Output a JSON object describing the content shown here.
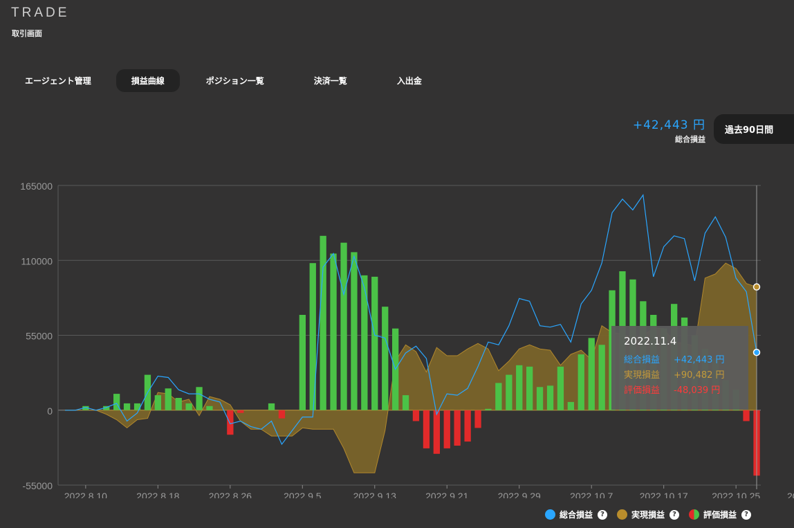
{
  "header": {
    "brand": "TRADE",
    "subtitle": "取引画面"
  },
  "tabs": [
    {
      "label": "エージェント管理",
      "active": false
    },
    {
      "label": "損益曲線",
      "active": true
    },
    {
      "label": "ポジション一覧",
      "active": false
    },
    {
      "label": "決済一覧",
      "active": false
    },
    {
      "label": "入出金",
      "active": false
    }
  ],
  "summary": {
    "value": "+42,443 円",
    "label": "総合損益"
  },
  "period_button": {
    "label": "過去90日間"
  },
  "tooltip": {
    "date": "2022.11.4",
    "rows": [
      {
        "label": "総合損益",
        "value": "+42,443 円",
        "color": "#2aa6ff"
      },
      {
        "label": "実現損益",
        "value": "+90,482 円",
        "color": "#b98d2c"
      },
      {
        "label": "評価損益",
        "value": "-48,039 円",
        "color": "#e22a2a"
      }
    ]
  },
  "legend": [
    {
      "label": "総合損益",
      "color": "#2aa6ff",
      "help": "?"
    },
    {
      "label": "実現損益",
      "color": "#b98d2c",
      "help": "?"
    },
    {
      "label": "評価損益",
      "color": "split",
      "help": "?"
    }
  ],
  "colors": {
    "total": "#2aa6ff",
    "realized": "#b98d2c",
    "realized_fill": "#7a642a",
    "unrealized_pos": "#4bc247",
    "unrealized_neg": "#e22a2a"
  },
  "chart_data": {
    "type": "bar",
    "ylim": [
      -55000,
      165000
    ],
    "yticks": [
      165000,
      110000,
      55000,
      0,
      -55000
    ],
    "xtick_labels": [
      "2022.8.10",
      "2022.8.18",
      "2022.8.26",
      "2022.9.5",
      "2022.9.13",
      "2022.9.21",
      "2022.9.29",
      "2022.10.7",
      "2022.10.17",
      "2022.10.25",
      "2022.11.4"
    ],
    "xtick_index": [
      2,
      9,
      16,
      23,
      30,
      37,
      44,
      51,
      58,
      65,
      72
    ],
    "series": [
      {
        "name": "総合損益",
        "type": "line",
        "values": [
          0,
          0,
          2000,
          0,
          2000,
          5000,
          -8000,
          -2000,
          13000,
          25000,
          24000,
          15000,
          12000,
          12000,
          8000,
          6000,
          -10000,
          -8000,
          -12000,
          -14000,
          -8000,
          -25000,
          -15000,
          -5000,
          -5000,
          105000,
          115000,
          85000,
          113000,
          90000,
          55000,
          53000,
          30000,
          42000,
          47000,
          38000,
          -3000,
          12000,
          11000,
          16000,
          32000,
          50000,
          48000,
          62000,
          82000,
          80000,
          62000,
          61000,
          63000,
          50000,
          78000,
          88000,
          108000,
          145000,
          155000,
          147000,
          158000,
          98000,
          120000,
          128000,
          126000,
          95000,
          130000,
          142000,
          127000,
          97000,
          87000,
          42443
        ]
      },
      {
        "name": "実現損益",
        "type": "area",
        "values": [
          0,
          0,
          0,
          0,
          -3000,
          -7000,
          -13000,
          -7000,
          -6000,
          13000,
          12000,
          6000,
          8000,
          -4000,
          10000,
          8000,
          4000,
          -8000,
          -14000,
          -14000,
          -19000,
          -19000,
          -19000,
          -13000,
          -14000,
          -14000,
          -14000,
          -28000,
          -46000,
          -46000,
          -46000,
          -15000,
          36000,
          48000,
          43000,
          28000,
          46000,
          40000,
          40000,
          45000,
          49000,
          45000,
          29000,
          36000,
          45000,
          48000,
          45000,
          44000,
          33000,
          41000,
          44000,
          37000,
          62000,
          57000,
          56000,
          52000,
          55000,
          60000,
          60000,
          50000,
          49000,
          47000,
          97000,
          100000,
          108000,
          104000,
          93000,
          90482
        ]
      },
      {
        "name": "評価損益",
        "type": "bar",
        "values": [
          0,
          0,
          3000,
          0,
          3000,
          12000,
          5000,
          5000,
          26000,
          11000,
          16000,
          9000,
          5000,
          17000,
          3000,
          0,
          -18000,
          -2000,
          0,
          0,
          5000,
          -6000,
          0,
          70000,
          108000,
          128000,
          115000,
          123000,
          116000,
          99000,
          98000,
          76000,
          60000,
          11000,
          -8000,
          -28000,
          -32000,
          -28000,
          -26000,
          -23000,
          -13000,
          1000,
          20000,
          26000,
          33000,
          32000,
          17000,
          18000,
          32000,
          6000,
          41000,
          53000,
          48000,
          88000,
          102000,
          96000,
          80000,
          70000,
          60000,
          78000,
          68000,
          55000,
          45000,
          38000,
          22000,
          15000,
          -8000,
          -48039
        ]
      }
    ]
  }
}
